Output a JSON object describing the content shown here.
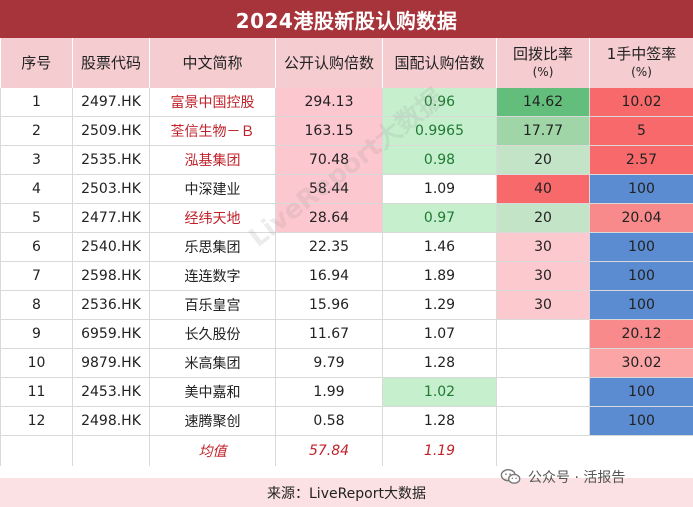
{
  "title": "2024港股新股认购数据",
  "headers": [
    {
      "main": "序号",
      "sub": ""
    },
    {
      "main": "股票代码",
      "sub": ""
    },
    {
      "main": "中文简称",
      "sub": ""
    },
    {
      "main": "公开认购倍数",
      "sub": ""
    },
    {
      "main": "国配认购倍数",
      "sub": ""
    },
    {
      "main": "回拨比率",
      "sub": "(%)"
    },
    {
      "main": "1手中签率",
      "sub": "(%)"
    }
  ],
  "rows": [
    {
      "no": "1",
      "code": "2497.HK",
      "name": "富景中国控股",
      "public": "294.13",
      "intl": "0.96",
      "clawback": "14.62",
      "lot": "10.02"
    },
    {
      "no": "2",
      "code": "2509.HK",
      "name": "荃信生物－Ｂ",
      "public": "163.15",
      "intl": "0.9965",
      "clawback": "17.77",
      "lot": "5"
    },
    {
      "no": "3",
      "code": "2535.HK",
      "name": "泓基集团",
      "public": "70.48",
      "intl": "0.98",
      "clawback": "20",
      "lot": "2.57"
    },
    {
      "no": "4",
      "code": "2503.HK",
      "name": "中深建业",
      "public": "58.44",
      "intl": "1.09",
      "clawback": "40",
      "lot": "100"
    },
    {
      "no": "5",
      "code": "2477.HK",
      "name": "经纬天地",
      "public": "28.64",
      "intl": "0.97",
      "clawback": "20",
      "lot": "20.04"
    },
    {
      "no": "6",
      "code": "2540.HK",
      "name": "乐思集团",
      "public": "22.35",
      "intl": "1.46",
      "clawback": "30",
      "lot": "100"
    },
    {
      "no": "7",
      "code": "2598.HK",
      "name": "连连数字",
      "public": "16.94",
      "intl": "1.89",
      "clawback": "30",
      "lot": "100"
    },
    {
      "no": "8",
      "code": "2536.HK",
      "name": "百乐皇宫",
      "public": "15.96",
      "intl": "1.29",
      "clawback": "30",
      "lot": "100"
    },
    {
      "no": "9",
      "code": "6959.HK",
      "name": "长久股份",
      "public": "11.67",
      "intl": "1.07",
      "clawback": "",
      "lot": "20.12"
    },
    {
      "no": "10",
      "code": "9879.HK",
      "name": "米高集团",
      "public": "9.79",
      "intl": "1.28",
      "clawback": "",
      "lot": "30.02"
    },
    {
      "no": "11",
      "code": "2453.HK",
      "name": "美中嘉和",
      "public": "1.99",
      "intl": "1.02",
      "clawback": "",
      "lot": "100"
    },
    {
      "no": "12",
      "code": "2498.HK",
      "name": "速腾聚创",
      "public": "0.58",
      "intl": "1.28",
      "clawback": "",
      "lot": "100"
    }
  ],
  "average": {
    "label": "均值",
    "public": "57.84",
    "intl": "1.19"
  },
  "footer": "来源：LiveReport大数据",
  "watermark": "LiveReport大数据",
  "wechat_label": "公众号 · 活报告",
  "colors": {
    "title_bg": "#a7333b",
    "header_bg": "#f5ccd0",
    "red_text": "#c0222a",
    "public_highlight": "#fdc7cf",
    "intl_green": "#c6efce",
    "clawback_strong_green": "#63be7b",
    "clawback_mid_green": "#9fd5a7",
    "clawback_light_green": "#c3e4c7",
    "clawback_red": "#f8696b",
    "clawback_pink": "#fbc9ce",
    "lot_blue": "#5b8bd0",
    "lot_red": "#f8696b",
    "lot_light_red": "#fba5a7"
  }
}
